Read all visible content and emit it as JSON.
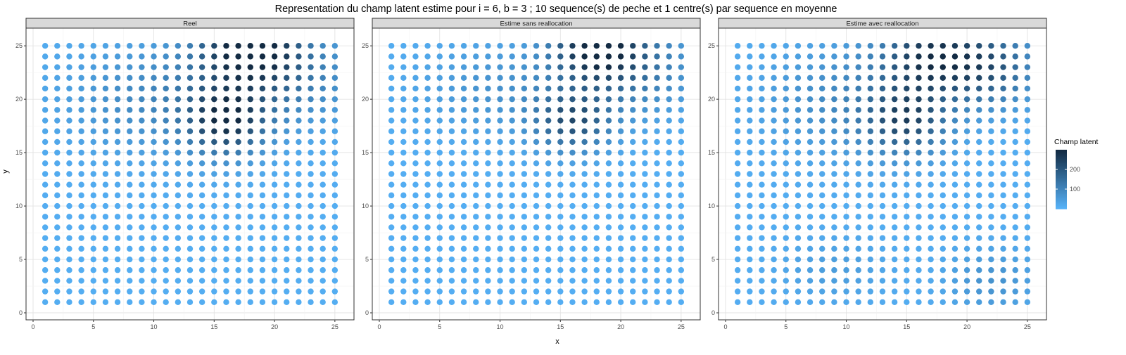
{
  "chart_data": {
    "type": "scatter",
    "title": "Representation du champ latent estime pour i = 6, b = 3 ; 10 sequence(s) de peche et 1 centre(s) par sequence en moyenne",
    "xlabel": "x",
    "ylabel": "y",
    "xlim": [
      0,
      26
    ],
    "ylim": [
      0,
      26
    ],
    "x_ticks": [
      0,
      5,
      10,
      15,
      20,
      25
    ],
    "y_ticks": [
      0,
      5,
      10,
      15,
      20,
      25
    ],
    "grid": true,
    "legend": {
      "title": "Champ latent",
      "position": "right",
      "range": [
        0,
        300
      ],
      "ticks": [
        100,
        200
      ],
      "low_color": "#56B1F7",
      "high_color": "#132B43"
    },
    "grid_points": {
      "x_range": [
        1,
        25
      ],
      "y_range": [
        1,
        25
      ],
      "step": 1
    },
    "panels": [
      {
        "name": "Reel",
        "background_value": 10,
        "hotspots": [
          {
            "x": 18,
            "y": 25,
            "value": 300,
            "sx": 2.8,
            "sy": 2.2
          },
          {
            "x": 16,
            "y": 18,
            "value": 250,
            "sx": 2.2,
            "sy": 2.2
          },
          {
            "x": 20,
            "y": 22,
            "value": 120,
            "sx": 4.5,
            "sy": 3.0
          },
          {
            "x": 10,
            "y": 20,
            "value": 80,
            "sx": 5.0,
            "sy": 3.5
          }
        ]
      },
      {
        "name": "Estime sans reallocation",
        "background_value": 8,
        "hotspots": [
          {
            "x": 18,
            "y": 25,
            "value": 285,
            "sx": 2.5,
            "sy": 2.2
          },
          {
            "x": 16,
            "y": 18,
            "value": 200,
            "sx": 2.2,
            "sy": 2.0
          },
          {
            "x": 21,
            "y": 23,
            "value": 120,
            "sx": 3.5,
            "sy": 3.0
          },
          {
            "x": 10,
            "y": 21,
            "value": 60,
            "sx": 4.5,
            "sy": 3.0
          }
        ]
      },
      {
        "name": "Estime avec reallocation",
        "background_value": 10,
        "hotspots": [
          {
            "x": 17,
            "y": 24,
            "value": 260,
            "sx": 2.8,
            "sy": 2.6
          },
          {
            "x": 22,
            "y": 23,
            "value": 180,
            "sx": 2.5,
            "sy": 2.5
          },
          {
            "x": 15,
            "y": 18,
            "value": 200,
            "sx": 2.3,
            "sy": 2.2
          },
          {
            "x": 10,
            "y": 20,
            "value": 80,
            "sx": 4.5,
            "sy": 3.5
          },
          {
            "x": 22,
            "y": 3,
            "value": 60,
            "sx": 2.5,
            "sy": 2.0
          },
          {
            "x": 9,
            "y": 4,
            "value": 35,
            "sx": 3.0,
            "sy": 2.0
          }
        ]
      }
    ]
  }
}
